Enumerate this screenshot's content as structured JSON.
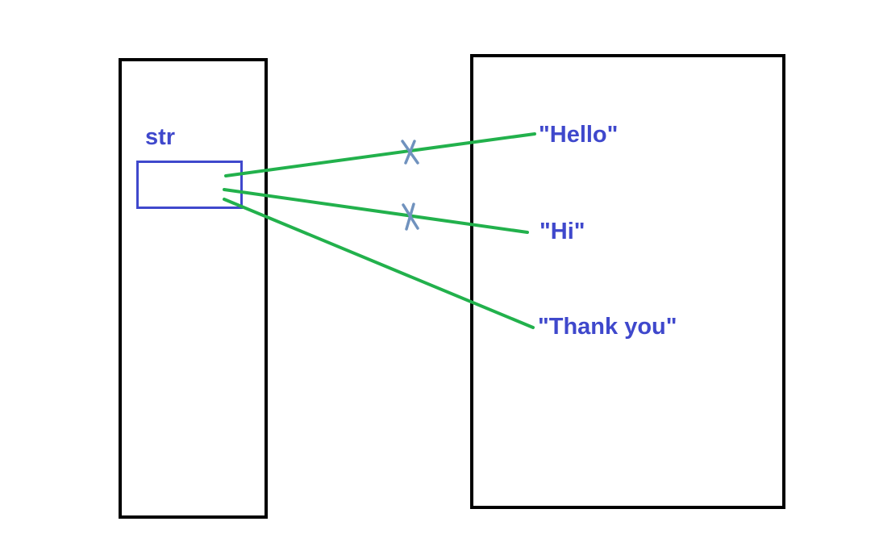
{
  "diagram": {
    "variable": {
      "name": "str"
    },
    "strings": [
      {
        "text": "\"Hello\"",
        "status": "broken"
      },
      {
        "text": "\"Hi\"",
        "status": "broken"
      },
      {
        "text": "\"Thank you\"",
        "status": "active"
      }
    ],
    "colors": {
      "outline": "#000000",
      "text": "#3f48cc",
      "reference_line": "#22b14c",
      "cross_mark": "#7092be"
    }
  }
}
